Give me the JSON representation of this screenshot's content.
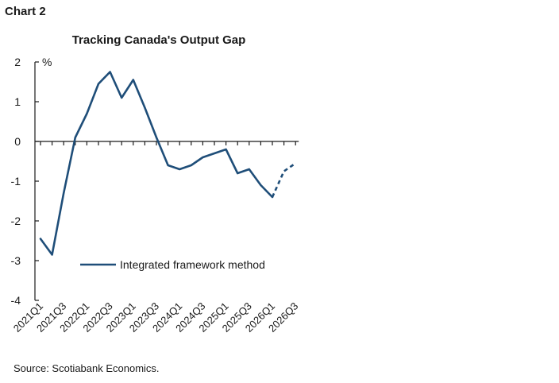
{
  "figure": {
    "label": "Chart 2",
    "source": "Source: Scotiabank Economics."
  },
  "chart_data": {
    "type": "line",
    "title": "Tracking Canada's Output Gap",
    "ylabel": "%",
    "xlabel": "",
    "ylim": [
      -4,
      2
    ],
    "yticks": [
      2,
      1,
      0,
      -1,
      -2,
      -3,
      -4
    ],
    "categories": [
      "2021Q1",
      "2021Q2",
      "2021Q3",
      "2021Q4",
      "2022Q1",
      "2022Q2",
      "2022Q3",
      "2022Q4",
      "2023Q1",
      "2023Q2",
      "2023Q3",
      "2023Q4",
      "2024Q1",
      "2024Q2",
      "2024Q3",
      "2024Q4",
      "2025Q1",
      "2025Q2",
      "2025Q3",
      "2025Q4",
      "2026Q1",
      "2026Q2",
      "2026Q3"
    ],
    "xtick_labels": [
      "2021Q1",
      "2021Q3",
      "2022Q1",
      "2022Q3",
      "2023Q1",
      "2023Q3",
      "2024Q1",
      "2024Q3",
      "2025Q1",
      "2025Q3",
      "2026Q1",
      "2026Q3"
    ],
    "series": [
      {
        "name": "Integrated framework method",
        "color": "#1f4e79",
        "values": [
          -2.45,
          -2.85,
          -1.3,
          0.1,
          0.7,
          1.45,
          1.75,
          1.1,
          1.55,
          0.85,
          0.1,
          -0.6,
          -0.7,
          -0.6,
          -0.4,
          -0.3,
          -0.2,
          -0.8,
          -0.7,
          -1.1,
          -1.4,
          -0.75,
          -0.55
        ],
        "projection_from": "2026Q1"
      }
    ],
    "legend_position": "lower-center",
    "grid": false
  }
}
